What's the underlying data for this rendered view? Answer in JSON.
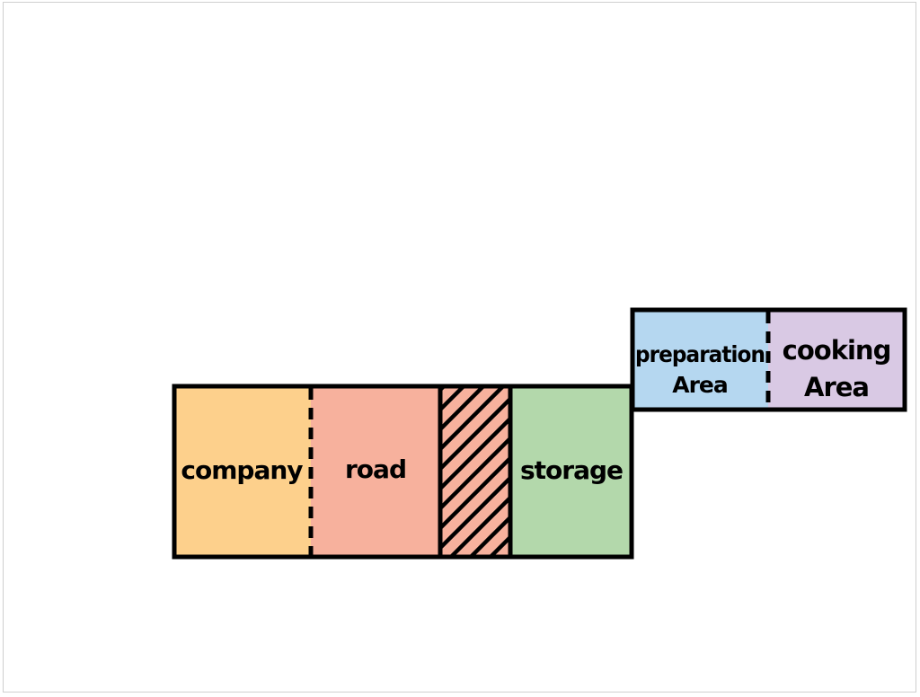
{
  "diagram": {
    "zones": {
      "company": {
        "label": "company",
        "color": "#FDD08C"
      },
      "road": {
        "label": "road",
        "color": "#F7B19D"
      },
      "hatched": {
        "color": "#F7B19D",
        "pattern": "diagonal-hatch"
      },
      "storage": {
        "label": "storage",
        "color": "#B3D8AB"
      },
      "preparation": {
        "label_line1": "preparation",
        "label_line2": "Area",
        "color": "#B5D7F0"
      },
      "cooking": {
        "label_line1": "cooking",
        "label_line2": "Area",
        "color": "#D9C9E4"
      }
    },
    "outline_color": "#000000",
    "divider_style": "dashed"
  }
}
